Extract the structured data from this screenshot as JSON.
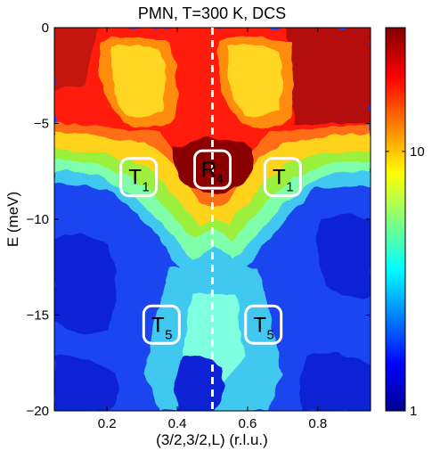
{
  "chart_data": {
    "type": "heatmap",
    "title": "PMN, T=300 K, DCS",
    "xlabel": "(3/2,3/2,L) (r.l.u.)",
    "ylabel": "E (meV)",
    "xlim": [
      0.05,
      0.95
    ],
    "ylim": [
      -20,
      0
    ],
    "x_ticks": [
      0.2,
      0.4,
      0.6,
      0.8
    ],
    "x_tick_labels": [
      "0.2",
      "0.4",
      "0.6",
      "0.8"
    ],
    "y_ticks": [
      0,
      -5,
      -10,
      -15,
      -20
    ],
    "y_tick_labels": [
      "0",
      "−5",
      "−10",
      "−15",
      "−20"
    ],
    "colorbar": {
      "scale": "log",
      "range": [
        1,
        30
      ],
      "ticks": [
        1,
        10
      ],
      "tick_labels": [
        "1",
        "10"
      ]
    },
    "dashed_line_x": 0.5,
    "annotations": [
      {
        "main": "T",
        "sub": "1",
        "x": 0.29,
        "y": -7.8
      },
      {
        "main": "R",
        "sub": "4",
        "x": 0.5,
        "y": -7.4
      },
      {
        "main": "T",
        "sub": "1",
        "x": 0.7,
        "y": -7.8
      },
      {
        "main": "T",
        "sub": "5",
        "x": 0.355,
        "y": -15.5
      },
      {
        "main": "T",
        "sub": "5",
        "x": 0.645,
        "y": -15.5
      }
    ]
  }
}
